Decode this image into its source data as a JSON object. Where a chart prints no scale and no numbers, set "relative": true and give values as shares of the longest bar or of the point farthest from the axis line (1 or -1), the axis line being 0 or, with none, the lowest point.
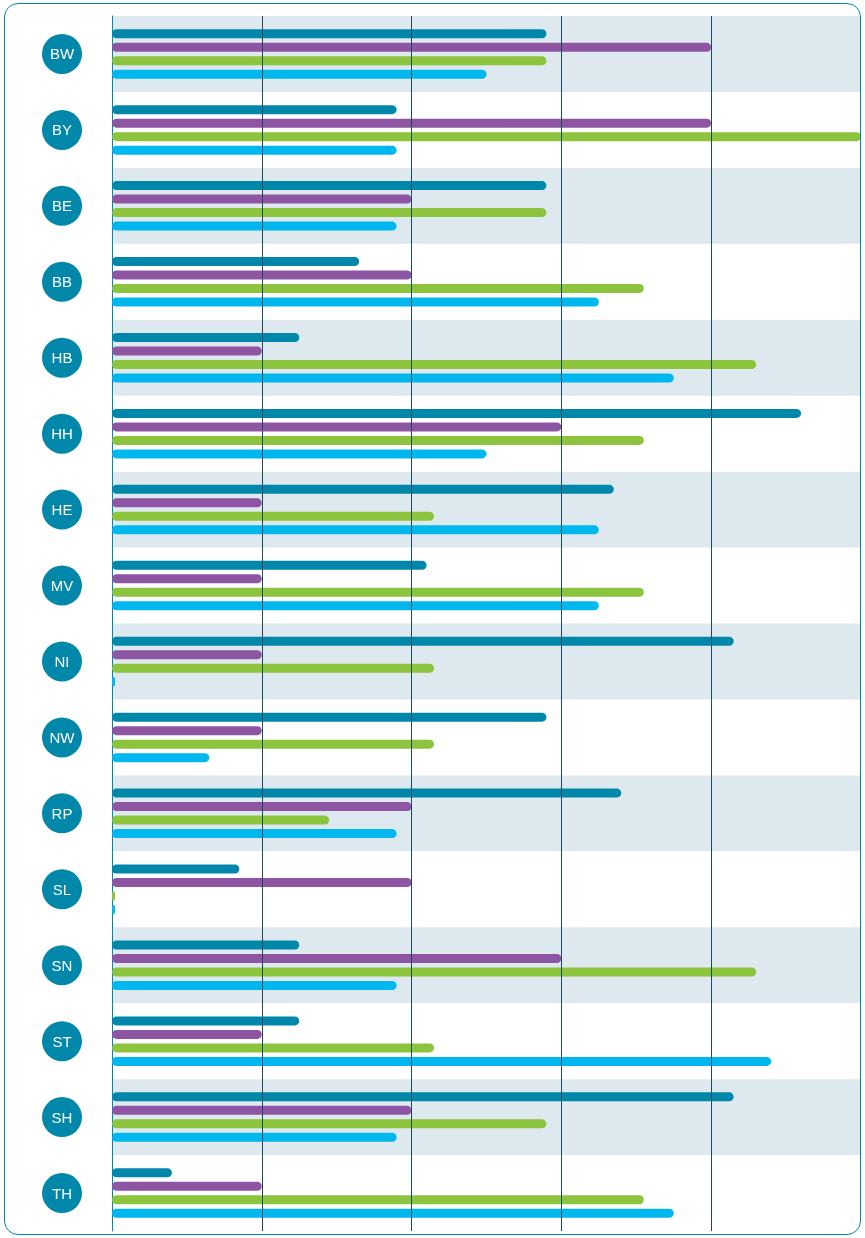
{
  "chart_data": {
    "type": "bar",
    "orientation": "horizontal",
    "relative": true,
    "ref_lines": [
      {
        "axis": "x",
        "value": 0.2,
        "color": "#1d4a5c"
      },
      {
        "axis": "x",
        "value": 0.4,
        "color": "#1d4a5c"
      },
      {
        "axis": "x",
        "value": 0.6,
        "color": "#1d4a5c"
      },
      {
        "axis": "x",
        "value": 0.8,
        "color": "#1d4a5c"
      }
    ],
    "categories": [
      "BW",
      "BY",
      "BE",
      "BB",
      "HB",
      "HH",
      "HE",
      "MV",
      "NI",
      "NW",
      "RP",
      "SL",
      "SN",
      "ST",
      "SH",
      "TH"
    ],
    "series": [
      {
        "color": "#0087aa",
        "values": [
          0.58,
          0.38,
          0.58,
          0.33,
          0.25,
          0.92,
          0.67,
          0.42,
          0.83,
          0.58,
          0.68,
          0.17,
          0.25,
          0.25,
          0.83,
          0.08
        ]
      },
      {
        "color": "#8e56a2",
        "values": [
          0.8,
          0.8,
          0.4,
          0.4,
          0.2,
          0.6,
          0.2,
          0.2,
          0.2,
          0.2,
          0.4,
          0.4,
          0.6,
          0.2,
          0.4,
          0.2
        ]
      },
      {
        "color": "#8cc43e",
        "values": [
          0.58,
          1,
          0.58,
          0.71,
          0.86,
          0.71,
          0.43,
          0.71,
          0.43,
          0.43,
          0.29,
          0.004,
          0.86,
          0.43,
          0.58,
          0.71
        ]
      },
      {
        "color": "#00b8ee",
        "values": [
          0.5,
          0.38,
          0.38,
          0.65,
          0.75,
          0.5,
          0.65,
          0.65,
          0.004,
          0.13,
          0.38,
          0.004,
          0.38,
          0.88,
          0.38,
          0.75
        ]
      }
    ]
  }
}
